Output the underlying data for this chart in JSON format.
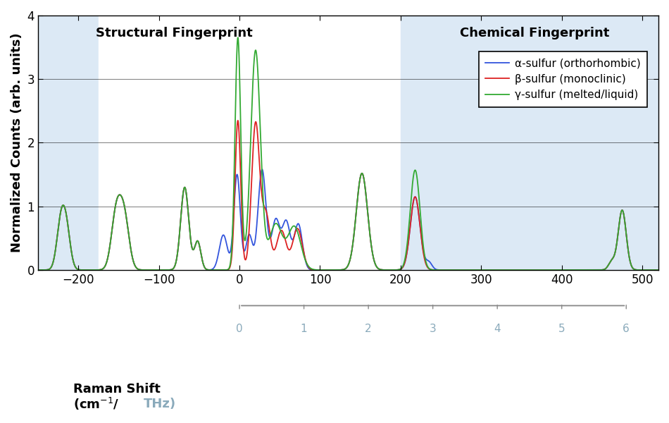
{
  "ylabel": "Normalized Counts (arb. units)",
  "xlim": [
    -250,
    520
  ],
  "ylim": [
    0,
    4
  ],
  "yticks": [
    0,
    1,
    2,
    3,
    4
  ],
  "xticks": [
    -200,
    -100,
    0,
    100,
    200,
    300,
    400,
    500
  ],
  "background_color": "#ffffff",
  "shaded_left_x0": -250,
  "shaded_left_x1": -175,
  "structural_x0": -175,
  "structural_x1": 200,
  "chemical_x0": 200,
  "chemical_x1": 520,
  "shade_color": "#dce9f5",
  "structural_label": "Structural Fingerprint",
  "chemical_label": "Chemical Fingerprint",
  "lines": [
    {
      "label": "α-sulfur (orthorhombic)",
      "color": "#3355dd"
    },
    {
      "label": "β-sulfur (monoclinic)",
      "color": "#dd2222"
    },
    {
      "label": "γ-sulfur (melted/liquid)",
      "color": "#33aa33"
    }
  ],
  "thz_ticks": [
    0,
    1,
    2,
    3,
    4,
    5,
    6
  ],
  "thz_color": "#8aaabb",
  "thz_cm_per_thz": 80.0,
  "thz_start_cm": 0
}
